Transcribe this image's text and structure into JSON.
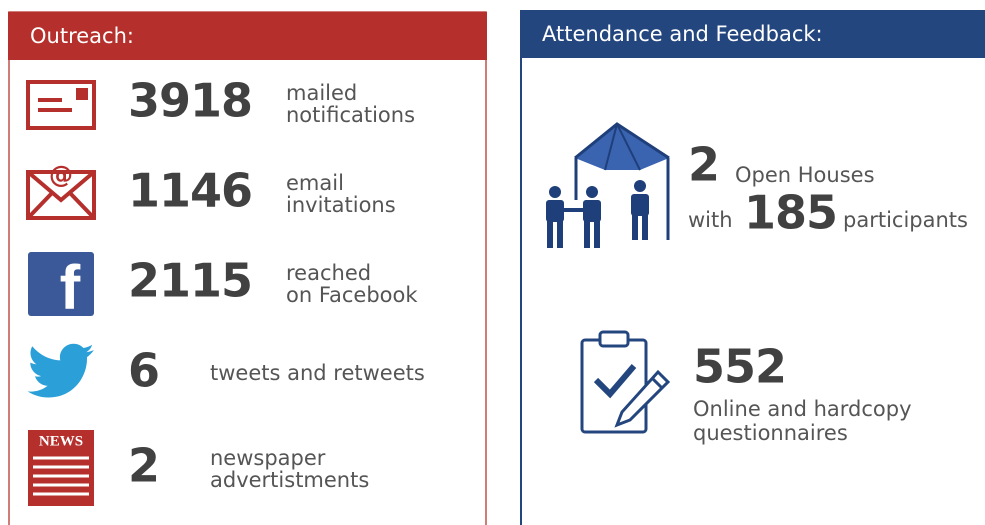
{
  "outreach": {
    "title": "Outreach:",
    "items": [
      {
        "value": 3918,
        "label": [
          "mailed",
          "notifications"
        ]
      },
      {
        "value": 1146,
        "label": [
          "email",
          "invitations"
        ]
      },
      {
        "value": 2115,
        "label": [
          "reached",
          "on Facebook"
        ]
      },
      {
        "value": 6,
        "label": [
          "tweets and retweets"
        ]
      },
      {
        "value": 2,
        "label": [
          "newspaper",
          "advertistments"
        ]
      }
    ]
  },
  "attendance": {
    "title": "Attendance and Feedback:",
    "open_houses": {
      "value": 2,
      "label": "Open Houses",
      "with": "with",
      "participants": 185,
      "participants_label": "participants"
    },
    "questionnaires": {
      "value": 552,
      "label": [
        "Online and hardcopy",
        "questionnaires"
      ]
    }
  }
}
